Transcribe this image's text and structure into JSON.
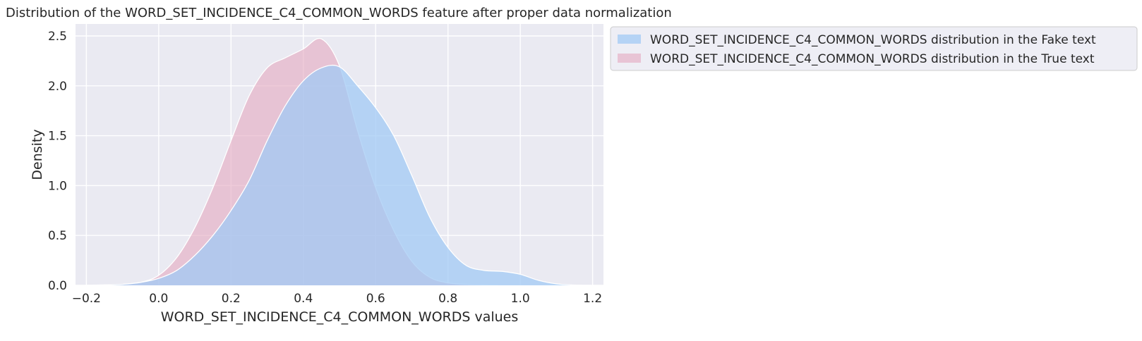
{
  "chart_data": {
    "type": "area",
    "title": "Distribution of the WORD_SET_INCIDENCE_C4_COMMON_WORDS feature after proper data normalization",
    "xlabel": "WORD_SET_INCIDENCE_C4_COMMON_WORDS values",
    "ylabel": "Density",
    "xlim": [
      -0.23,
      1.23
    ],
    "ylim": [
      0,
      2.62
    ],
    "xticks": [
      -0.2,
      0.0,
      0.2,
      0.4,
      0.6,
      0.8,
      1.0,
      1.2
    ],
    "xtick_labels": [
      "−0.2",
      "0.0",
      "0.2",
      "0.4",
      "0.6",
      "0.8",
      "1.0",
      "1.2"
    ],
    "yticks": [
      0.0,
      0.5,
      1.0,
      1.5,
      2.0,
      2.5
    ],
    "ytick_labels": [
      "0.0",
      "0.5",
      "1.0",
      "1.5",
      "2.0",
      "2.5"
    ],
    "grid": true,
    "legend_placement": "outside-top-right",
    "series": [
      {
        "name": "WORD_SET_INCIDENCE_C4_COMMON_WORDS distribution in the Fake text",
        "color": "#a1c9f4",
        "x": [
          -0.2,
          -0.15,
          -0.1,
          -0.05,
          0.0,
          0.05,
          0.1,
          0.15,
          0.2,
          0.25,
          0.3,
          0.35,
          0.4,
          0.45,
          0.5,
          0.55,
          0.6,
          0.65,
          0.7,
          0.75,
          0.8,
          0.85,
          0.9,
          0.95,
          1.0,
          1.05,
          1.1,
          1.15,
          1.2
        ],
        "y": [
          0.0,
          0.003,
          0.01,
          0.03,
          0.07,
          0.15,
          0.3,
          0.5,
          0.75,
          1.05,
          1.45,
          1.8,
          2.05,
          2.18,
          2.19,
          2.0,
          1.78,
          1.5,
          1.1,
          0.68,
          0.38,
          0.2,
          0.15,
          0.14,
          0.11,
          0.05,
          0.015,
          0.003,
          0.0
        ]
      },
      {
        "name": "WORD_SET_INCIDENCE_C4_COMMON_WORDS distribution in the True text",
        "color": "#debb9b",
        "fill": "#e4a8bf",
        "x": [
          -0.2,
          -0.15,
          -0.1,
          -0.05,
          0.0,
          0.05,
          0.1,
          0.15,
          0.2,
          0.25,
          0.3,
          0.35,
          0.4,
          0.45,
          0.5,
          0.55,
          0.6,
          0.65,
          0.7,
          0.75,
          0.8,
          0.85,
          0.9,
          0.95,
          1.0
        ],
        "y": [
          0.0,
          0.005,
          0.01,
          0.03,
          0.1,
          0.28,
          0.58,
          0.98,
          1.45,
          1.9,
          2.18,
          2.28,
          2.37,
          2.47,
          2.2,
          1.55,
          0.98,
          0.55,
          0.24,
          0.08,
          0.025,
          0.01,
          0.004,
          0.001,
          0.0
        ]
      }
    ]
  }
}
